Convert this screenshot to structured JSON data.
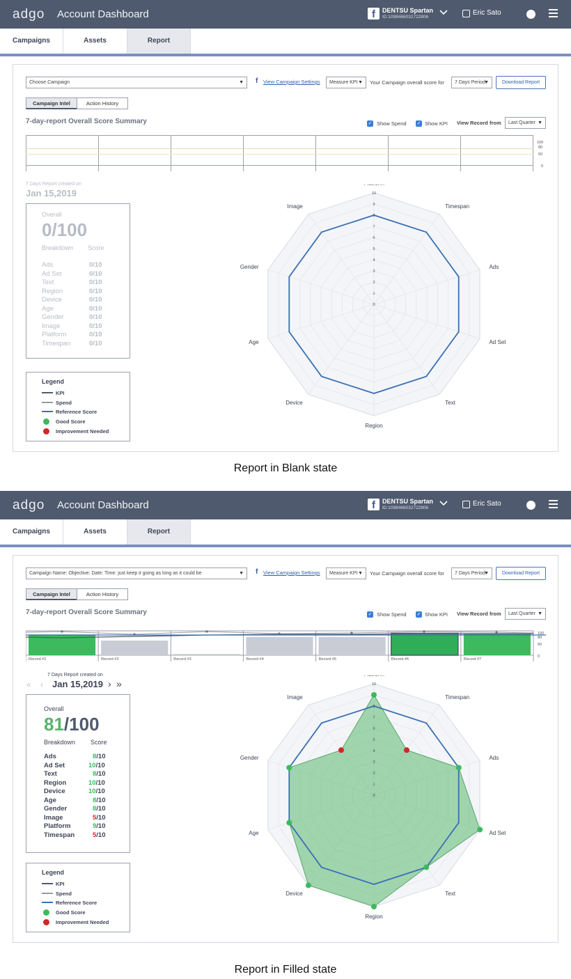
{
  "app": {
    "logo": "adgo",
    "title": "Account Dashboard"
  },
  "account": {
    "name": "DENTSU Spartan",
    "id": "ID:1098466032722806"
  },
  "user": {
    "name": "Eric Sato"
  },
  "nav": {
    "tabs": [
      "Campaigns",
      "Assets",
      "Report"
    ],
    "active": "Report"
  },
  "toolbar": {
    "link": "View Campaign Settings",
    "kpi_select": "Measure KPI",
    "score_text": "Your Campaign overall score for",
    "period_select": "7 Days Period",
    "download": "Download Report"
  },
  "subtabs": [
    "Campaign Intel",
    "Action History"
  ],
  "summary": {
    "title": "7-day-report Overall Score Summary",
    "show_spend": "Show Spend",
    "show_kpi": "Show KPI",
    "view_from": "View Record from",
    "view_from_select": "Last Quarter",
    "axis": [
      "100",
      "80",
      "50",
      "0"
    ]
  },
  "report_created": {
    "label": "7 Days Report created on",
    "date": "Jan 15,2019"
  },
  "breakdown": {
    "overall": "Overall",
    "col1": "Breakdown",
    "col2": "Score",
    "out_of": "/100",
    "item_suffix": "/10"
  },
  "legend": {
    "title": "Legend",
    "items": [
      "KPI",
      "Spend",
      "Reference Score",
      "Good Score",
      "Improvement Needed"
    ],
    "colors": {
      "kpi": "#4f5a6e",
      "spend": "#9a9a9a",
      "reference": "#3b6fb6",
      "good": "#3dba5e",
      "improve": "#d02828"
    }
  },
  "radar": {
    "labels": [
      "Platform",
      "Timespan",
      "Ads",
      "Ad Set",
      "Text",
      "Region",
      "Device",
      "Age",
      "Gender",
      "Image"
    ],
    "ticks": [
      "0",
      "1",
      "2",
      "3",
      "4",
      "5",
      "6",
      "7",
      "8",
      "9",
      "10"
    ],
    "reference": 8
  },
  "blank": {
    "campaign_select": "Choose Campaign",
    "overall_score": "0",
    "items": [
      {
        "label": "Ads",
        "score": "0"
      },
      {
        "label": "Ad Set",
        "score": "0"
      },
      {
        "label": "Text",
        "score": "0"
      },
      {
        "label": "Region",
        "score": "0"
      },
      {
        "label": "Device",
        "score": "0"
      },
      {
        "label": "Age",
        "score": "0"
      },
      {
        "label": "Gender",
        "score": "0"
      },
      {
        "label": "Image",
        "score": "0"
      },
      {
        "label": "Platform",
        "score": "0"
      },
      {
        "label": "Timespan",
        "score": "0"
      }
    ],
    "caption": "Report in Blank state"
  },
  "filled": {
    "campaign_select": "Campaign Name: Objective: Date: Time: just keep it going as long as it could be",
    "overall_score": "81",
    "items": [
      {
        "label": "Ads",
        "score": "8",
        "status": "good"
      },
      {
        "label": "Ad Set",
        "score": "10",
        "status": "good"
      },
      {
        "label": "Text",
        "score": "8",
        "status": "good"
      },
      {
        "label": "Region",
        "score": "10",
        "status": "good"
      },
      {
        "label": "Device",
        "score": "10",
        "status": "good"
      },
      {
        "label": "Age",
        "score": "8",
        "status": "good"
      },
      {
        "label": "Gender",
        "score": "8",
        "status": "good"
      },
      {
        "label": "Image",
        "score": "5",
        "status": "improve"
      },
      {
        "label": "Platform",
        "score": "9",
        "status": "good"
      },
      {
        "label": "Timespan",
        "score": "5",
        "status": "improve"
      }
    ],
    "radar_values": [
      9,
      5,
      8,
      10,
      8,
      10,
      10,
      8,
      8,
      5
    ],
    "records": [
      {
        "label": "Record #1",
        "value": 85,
        "state": "good"
      },
      {
        "label": "Record #2",
        "value": 60,
        "state": "neutral"
      },
      {
        "label": "Record #3",
        "value": 5,
        "state": "neutral"
      },
      {
        "label": "Record #4",
        "value": 75,
        "state": "neutral"
      },
      {
        "label": "Record #5",
        "value": 75,
        "state": "neutral"
      },
      {
        "label": "Record #6",
        "value": 90,
        "state": "selected"
      },
      {
        "label": "Record #7",
        "value": 90,
        "state": "good"
      }
    ],
    "caption": "Report in Filled state"
  }
}
